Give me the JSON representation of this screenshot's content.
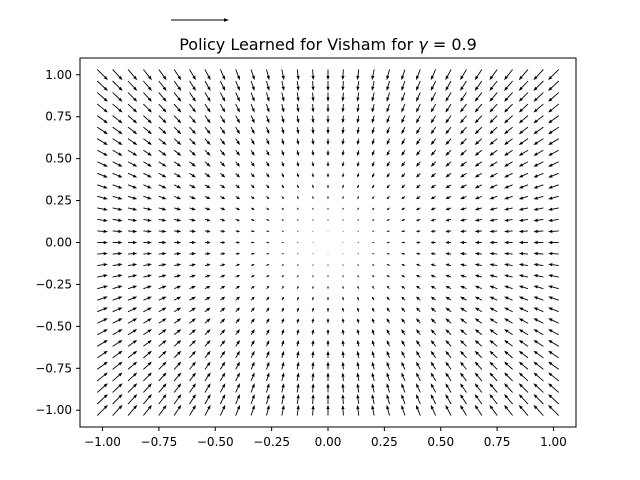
{
  "chart_data": {
    "type": "quiver",
    "title": "Policy Learned for Visham for γ = 0.9",
    "title_parts": {
      "prefix": "Policy Learned for Visham for ",
      "symbol": "γ",
      "suffix": " = 0.9"
    },
    "xlabel": "",
    "ylabel": "",
    "xlim": [
      -1.1,
      1.1
    ],
    "ylim": [
      -1.1,
      1.1
    ],
    "x_ticks": [
      -1.0,
      -0.75,
      -0.5,
      -0.25,
      0.0,
      0.25,
      0.5,
      0.75,
      1.0
    ],
    "x_tick_labels": [
      "−1.00",
      "−0.75",
      "−0.50",
      "−0.25",
      "0.00",
      "0.25",
      "0.50",
      "0.75",
      "1.00"
    ],
    "y_ticks": [
      1.0,
      0.75,
      0.5,
      0.25,
      0.0,
      -0.25,
      -0.5,
      -0.75,
      -1.0
    ],
    "y_tick_labels": [
      "1.00",
      "0.75",
      "0.50",
      "0.25",
      "0.00",
      "−0.25",
      "−0.50",
      "−0.75",
      "−1.00"
    ],
    "grid": false,
    "field": {
      "description": "arrows point toward the origin; direction (-x, -y), length grows with distance from the center",
      "x_min": -1.0,
      "x_max": 1.0,
      "nx": 31,
      "y_min": -1.0,
      "y_max": 1.0,
      "ny": 31
    },
    "key_arrow": true,
    "colors": {
      "arrow": "#000000",
      "axes": "#000000",
      "background": "#ffffff"
    }
  }
}
